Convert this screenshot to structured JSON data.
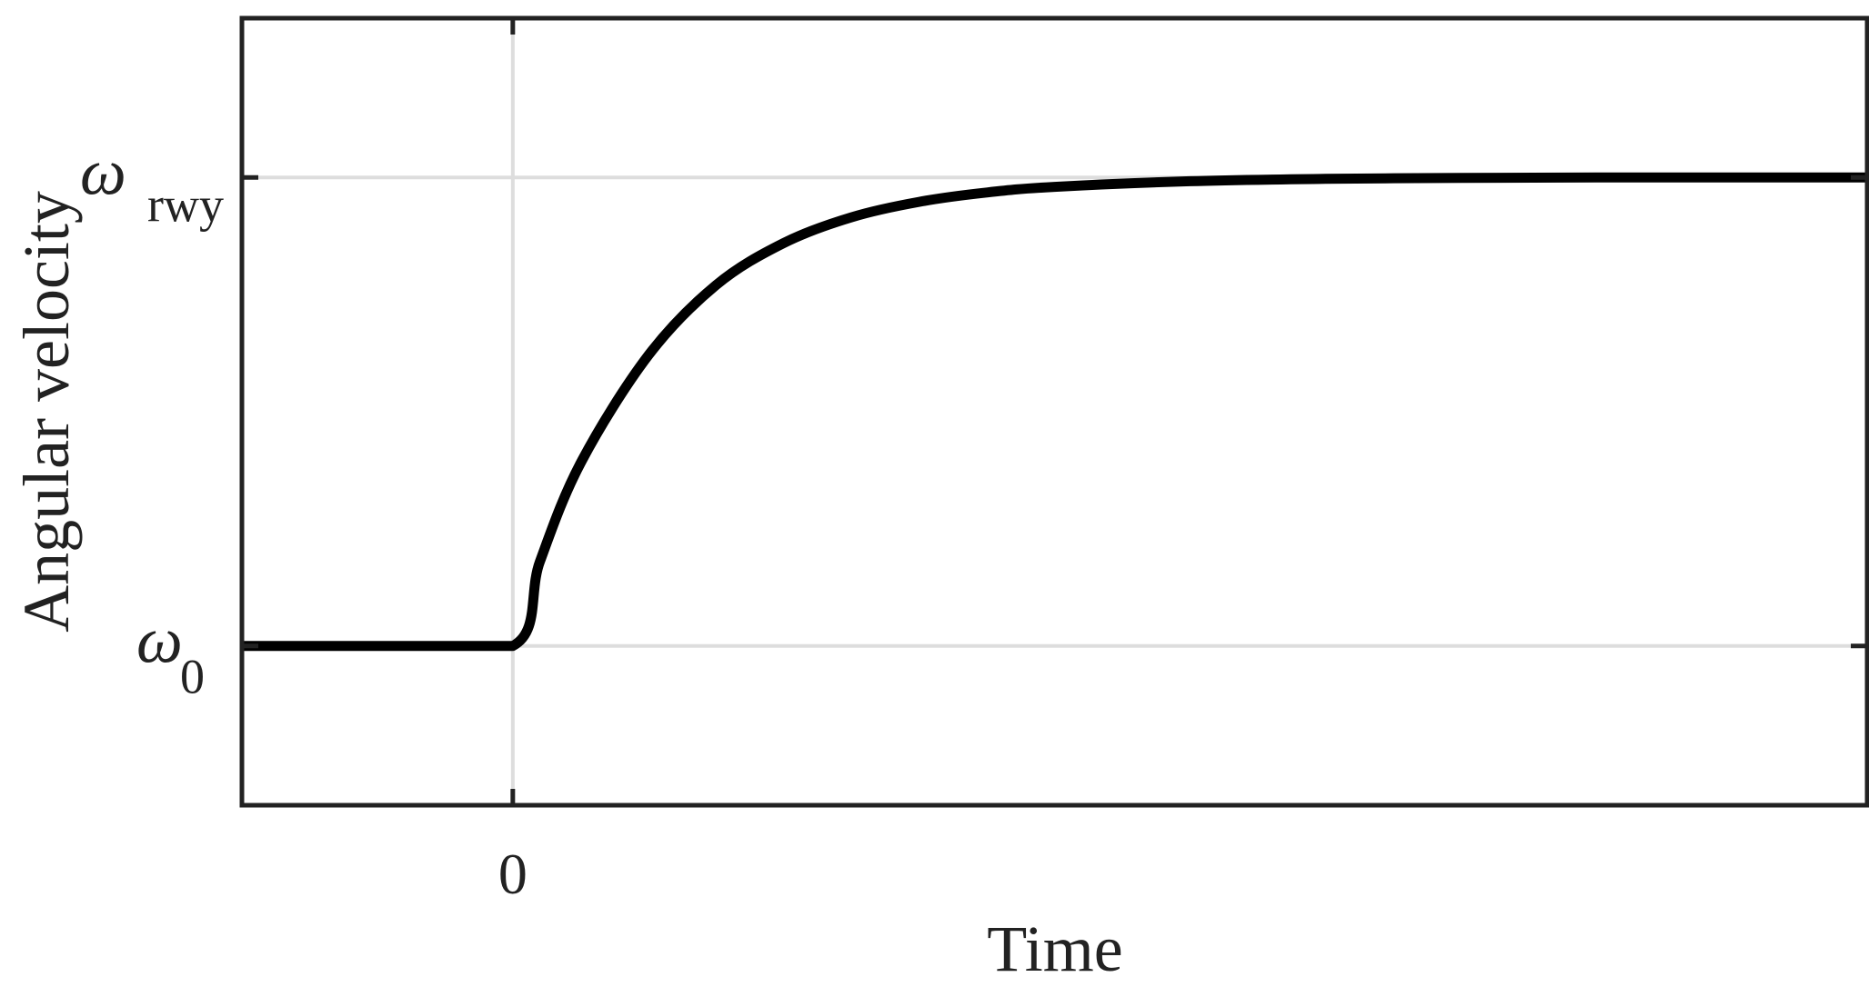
{
  "chart_data": {
    "type": "line",
    "title": "",
    "xlabel": "Time",
    "ylabel": "Angular velocity",
    "xlim": [
      -1,
      5
    ],
    "ylim": [
      -0.34,
      1.34
    ],
    "grid": true,
    "x_ticks": [
      {
        "value": 0,
        "label": "0"
      }
    ],
    "y_ticks": [
      {
        "value": 0,
        "symbol": "ω",
        "subscript": "0"
      },
      {
        "value": 1,
        "symbol": "ω",
        "subscript": "rwy"
      }
    ],
    "series": [
      {
        "color": "#000000",
        "x": [
          -1,
          -0.5,
          0,
          0.1,
          0.25,
          0.5,
          0.75,
          1,
          1.25,
          1.5,
          1.75,
          2,
          2.5,
          3,
          3.5,
          4,
          4.5,
          5
        ],
        "y": [
          0,
          0,
          0,
          0.18,
          0.39,
          0.62,
          0.77,
          0.86,
          0.915,
          0.948,
          0.968,
          0.98,
          0.992,
          0.997,
          0.999,
          1.0,
          1.0,
          1.0
        ]
      }
    ]
  },
  "colors": {
    "axes": "#222222",
    "grid": "#dddddd",
    "line": "#000000"
  }
}
